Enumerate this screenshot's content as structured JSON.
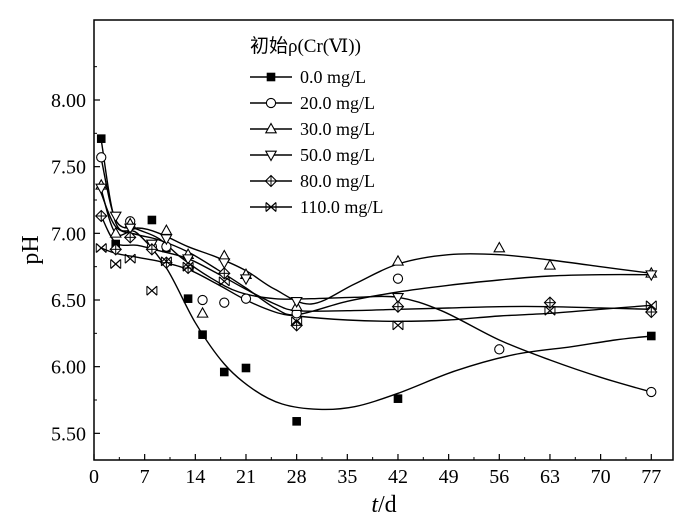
{
  "chart_data": {
    "type": "line",
    "title": "",
    "xlabel_italic": "t",
    "xlabel_unit": "/d",
    "ylabel": "pH",
    "xlim": [
      0,
      80
    ],
    "ylim": [
      5.3,
      8.6
    ],
    "xticks": [
      0,
      7,
      14,
      21,
      28,
      35,
      42,
      49,
      56,
      63,
      70,
      77
    ],
    "xtick_labels": [
      "0",
      "7",
      "14",
      "21",
      "28",
      "35",
      "42",
      "49",
      "56",
      "63",
      "70",
      "77"
    ],
    "yticks": [
      5.5,
      6.0,
      6.5,
      7.0,
      7.5,
      8.0
    ],
    "ytick_labels": [
      "5.50",
      "6.00",
      "6.50",
      "7.00",
      "7.50",
      "8.00"
    ],
    "legend_title": "初始ρ(Cr(Ⅵ))",
    "legend_position": "top-right",
    "x": [
      1,
      3,
      5,
      8,
      10,
      13,
      15,
      18,
      21,
      28,
      42,
      56,
      63,
      77
    ],
    "series": [
      {
        "name": "0.0 mg/L",
        "marker": "square-filled",
        "x": [
          1,
          3,
          8,
          10,
          13,
          15,
          18,
          21,
          28,
          42,
          77
        ],
        "values": [
          7.71,
          6.92,
          7.1,
          6.89,
          6.51,
          6.24,
          5.96,
          5.99,
          5.59,
          5.76,
          6.23
        ]
      },
      {
        "name": "20.0 mg/L",
        "marker": "circle-open",
        "x": [
          1,
          5,
          8,
          10,
          15,
          18,
          21,
          28,
          42,
          56,
          77
        ],
        "values": [
          7.57,
          7.09,
          6.9,
          6.9,
          6.5,
          6.48,
          6.51,
          6.4,
          6.66,
          6.13,
          5.81
        ]
      },
      {
        "name": "30.0 mg/L",
        "marker": "triangle-up-open",
        "x": [
          1,
          3,
          5,
          10,
          13,
          15,
          18,
          21,
          28,
          42,
          56,
          63,
          77
        ],
        "values": [
          7.36,
          7.0,
          7.07,
          7.02,
          6.84,
          6.4,
          6.83,
          6.69,
          6.45,
          6.79,
          6.89,
          6.76,
          6.7
        ]
      },
      {
        "name": "50.0 mg/L",
        "marker": "triangle-down-open",
        "x": [
          1,
          3,
          5,
          8,
          10,
          13,
          18,
          21,
          28,
          42,
          77
        ],
        "values": [
          7.34,
          7.13,
          7.04,
          6.92,
          6.96,
          6.81,
          6.78,
          6.66,
          6.49,
          6.52,
          6.69
        ]
      },
      {
        "name": "80.0 mg/L",
        "marker": "diamond-cross",
        "x": [
          1,
          3,
          5,
          8,
          10,
          13,
          18,
          28,
          42,
          63,
          77
        ],
        "values": [
          7.13,
          6.88,
          6.97,
          6.88,
          6.78,
          6.74,
          6.7,
          6.31,
          6.45,
          6.48,
          6.41
        ]
      },
      {
        "name": "110.0 mg/L",
        "marker": "x-box",
        "x": [
          1,
          3,
          5,
          8,
          10,
          13,
          18,
          28,
          42,
          63,
          77
        ],
        "values": [
          6.89,
          6.77,
          6.81,
          6.57,
          6.79,
          6.75,
          6.64,
          6.34,
          6.31,
          6.42,
          6.46
        ]
      }
    ],
    "fit_curves": [
      {
        "series": "0.0 mg/L",
        "x": [
          1,
          3,
          6,
          10,
          14,
          18,
          22,
          26,
          31,
          36,
          42,
          50,
          58,
          66,
          72,
          77
        ],
        "y": [
          7.7,
          7.08,
          7.0,
          6.74,
          6.33,
          6.02,
          5.83,
          5.72,
          5.68,
          5.7,
          5.8,
          5.97,
          6.09,
          6.15,
          6.2,
          6.23
        ]
      },
      {
        "series": "20.0 mg/L",
        "x": [
          1,
          3,
          6,
          9,
          12,
          16,
          20,
          25,
          30,
          36,
          42,
          48,
          56,
          63,
          70,
          77
        ],
        "y": [
          7.56,
          7.1,
          7.03,
          6.96,
          6.82,
          6.67,
          6.56,
          6.51,
          6.51,
          6.52,
          6.52,
          6.42,
          6.2,
          6.05,
          5.92,
          5.81
        ]
      },
      {
        "series": "30.0 mg/L",
        "x": [
          1,
          3,
          6,
          9,
          13,
          17,
          21,
          25,
          30,
          36,
          42,
          49,
          56,
          63,
          70,
          77
        ],
        "y": [
          7.33,
          7.0,
          7.04,
          7.0,
          6.9,
          6.82,
          6.72,
          6.58,
          6.47,
          6.62,
          6.77,
          6.84,
          6.84,
          6.8,
          6.75,
          6.7
        ]
      },
      {
        "series": "50.0 mg/L",
        "x": [
          1,
          3,
          6,
          9,
          13,
          17,
          21,
          25,
          28,
          35,
          42,
          49,
          56,
          63,
          70,
          77
        ],
        "y": [
          7.3,
          7.05,
          6.99,
          6.95,
          6.86,
          6.73,
          6.59,
          6.44,
          6.39,
          6.49,
          6.56,
          6.61,
          6.65,
          6.68,
          6.69,
          6.69
        ]
      },
      {
        "series": "80.0 mg/L",
        "x": [
          1,
          3,
          6,
          9,
          13,
          17,
          21,
          25,
          28,
          35,
          42,
          49,
          56,
          63,
          70,
          77
        ],
        "y": [
          7.13,
          6.93,
          6.91,
          6.87,
          6.81,
          6.7,
          6.58,
          6.47,
          6.42,
          6.42,
          6.43,
          6.44,
          6.45,
          6.45,
          6.44,
          6.43
        ]
      },
      {
        "series": "110.0 mg/L",
        "x": [
          1,
          3,
          6,
          9,
          13,
          17,
          21,
          25,
          28,
          35,
          42,
          49,
          56,
          63,
          70,
          77
        ],
        "y": [
          6.89,
          6.85,
          6.82,
          6.79,
          6.73,
          6.62,
          6.5,
          6.41,
          6.38,
          6.35,
          6.34,
          6.35,
          6.38,
          6.4,
          6.43,
          6.46
        ]
      }
    ]
  }
}
